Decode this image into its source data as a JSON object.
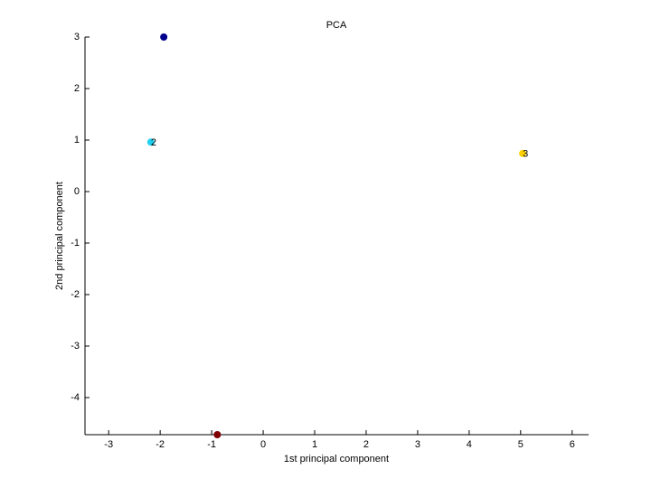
{
  "chart_data": {
    "type": "scatter",
    "title": "PCA",
    "x_label": "1st principal component",
    "y_label": "2nd principal component",
    "x": [
      -1.93,
      -2.18,
      5.04,
      -0.89
    ],
    "values": [
      3.0,
      0.96,
      0.74,
      -4.72
    ],
    "point_labels": [
      null,
      "2",
      "3",
      null
    ],
    "colors": [
      "#00008f",
      "#20d0f0",
      "#ffd000",
      "#800000"
    ],
    "xlim": [
      -3.46,
      6.32
    ],
    "ylim": [
      -4.72,
      3.0
    ],
    "xticks": [
      -3,
      -2,
      -1,
      0,
      1,
      2,
      3,
      4,
      5,
      6
    ],
    "yticks": [
      -4,
      -3,
      -2,
      -1,
      0,
      1,
      2,
      3
    ],
    "grid": false
  }
}
